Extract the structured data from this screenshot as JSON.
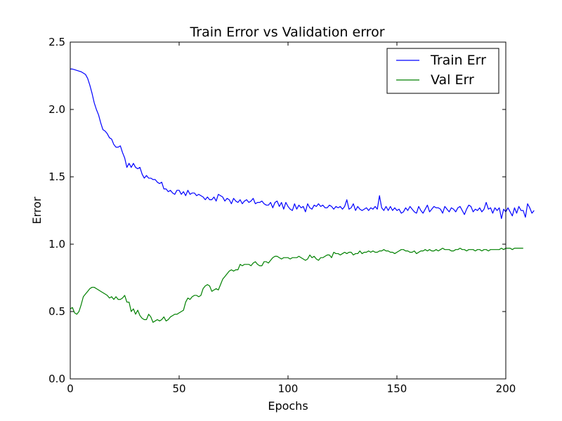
{
  "chart_data": {
    "type": "line",
    "title": "Train Error vs Validation error",
    "xlabel": "Epochs",
    "ylabel": "Error",
    "xlim": [
      0,
      200
    ],
    "ylim": [
      0,
      2.5
    ],
    "x_ticks": [
      0,
      50,
      100,
      150,
      200
    ],
    "x_tick_labels": [
      "0",
      "50",
      "100",
      "150",
      "200"
    ],
    "y_ticks": [
      0.0,
      0.5,
      1.0,
      1.5,
      2.0,
      2.5
    ],
    "y_tick_labels": [
      "0.0",
      "0.5",
      "1.0",
      "1.5",
      "2.0",
      "2.5"
    ],
    "grid": false,
    "legend_position": "top-right",
    "series": [
      {
        "name": "Train Err",
        "color": "#0000ff",
        "values": [
          2.3,
          2.3,
          2.295,
          2.29,
          2.285,
          2.28,
          2.27,
          2.26,
          2.23,
          2.18,
          2.12,
          2.05,
          2.0,
          1.96,
          1.9,
          1.85,
          1.84,
          1.82,
          1.79,
          1.78,
          1.74,
          1.72,
          1.72,
          1.73,
          1.68,
          1.64,
          1.57,
          1.6,
          1.57,
          1.6,
          1.57,
          1.56,
          1.57,
          1.52,
          1.49,
          1.51,
          1.49,
          1.49,
          1.48,
          1.48,
          1.46,
          1.45,
          1.46,
          1.41,
          1.41,
          1.39,
          1.4,
          1.38,
          1.37,
          1.4,
          1.4,
          1.37,
          1.39,
          1.36,
          1.4,
          1.37,
          1.38,
          1.38,
          1.36,
          1.37,
          1.36,
          1.35,
          1.33,
          1.35,
          1.33,
          1.33,
          1.35,
          1.32,
          1.37,
          1.36,
          1.35,
          1.32,
          1.34,
          1.33,
          1.3,
          1.34,
          1.32,
          1.31,
          1.33,
          1.3,
          1.32,
          1.33,
          1.31,
          1.32,
          1.34,
          1.3,
          1.31,
          1.31,
          1.32,
          1.3,
          1.29,
          1.29,
          1.31,
          1.27,
          1.31,
          1.32,
          1.28,
          1.31,
          1.26,
          1.31,
          1.28,
          1.26,
          1.25,
          1.3,
          1.26,
          1.29,
          1.27,
          1.28,
          1.24,
          1.3,
          1.27,
          1.26,
          1.29,
          1.28,
          1.3,
          1.28,
          1.29,
          1.27,
          1.27,
          1.29,
          1.28,
          1.26,
          1.28,
          1.27,
          1.28,
          1.26,
          1.28,
          1.33,
          1.26,
          1.27,
          1.3,
          1.25,
          1.28,
          1.26,
          1.25,
          1.26,
          1.27,
          1.25,
          1.27,
          1.26,
          1.28,
          1.26,
          1.36,
          1.27,
          1.25,
          1.28,
          1.25,
          1.28,
          1.25,
          1.27,
          1.25,
          1.26,
          1.23,
          1.24,
          1.27,
          1.25,
          1.28,
          1.26,
          1.24,
          1.23,
          1.28,
          1.25,
          1.23,
          1.26,
          1.29,
          1.24,
          1.26,
          1.28,
          1.27,
          1.27,
          1.26,
          1.23,
          1.28,
          1.26,
          1.24,
          1.27,
          1.26,
          1.24,
          1.27,
          1.28,
          1.25,
          1.22,
          1.26,
          1.29,
          1.28,
          1.24,
          1.26,
          1.25,
          1.27,
          1.24,
          1.26,
          1.31,
          1.26,
          1.27,
          1.23,
          1.27,
          1.25,
          1.27,
          1.19,
          1.26,
          1.24,
          1.27,
          1.24,
          1.21,
          1.27,
          1.23,
          1.28,
          1.25,
          1.25,
          1.2,
          1.3,
          1.27,
          1.23,
          1.25
        ]
      },
      {
        "name": "Val Err",
        "color": "#008000",
        "values": [
          0.52,
          0.53,
          0.49,
          0.48,
          0.5,
          0.55,
          0.61,
          0.63,
          0.65,
          0.67,
          0.68,
          0.68,
          0.67,
          0.66,
          0.65,
          0.64,
          0.63,
          0.62,
          0.6,
          0.61,
          0.59,
          0.61,
          0.59,
          0.59,
          0.6,
          0.62,
          0.57,
          0.57,
          0.5,
          0.52,
          0.48,
          0.51,
          0.47,
          0.45,
          0.44,
          0.44,
          0.48,
          0.46,
          0.42,
          0.43,
          0.44,
          0.43,
          0.44,
          0.46,
          0.43,
          0.44,
          0.46,
          0.47,
          0.48,
          0.48,
          0.49,
          0.5,
          0.51,
          0.57,
          0.6,
          0.59,
          0.61,
          0.62,
          0.62,
          0.61,
          0.62,
          0.67,
          0.69,
          0.7,
          0.69,
          0.65,
          0.66,
          0.67,
          0.66,
          0.7,
          0.74,
          0.76,
          0.78,
          0.8,
          0.81,
          0.8,
          0.81,
          0.81,
          0.85,
          0.84,
          0.85,
          0.85,
          0.85,
          0.84,
          0.86,
          0.87,
          0.85,
          0.84,
          0.84,
          0.87,
          0.87,
          0.86,
          0.88,
          0.9,
          0.91,
          0.91,
          0.9,
          0.89,
          0.9,
          0.9,
          0.9,
          0.89,
          0.9,
          0.9,
          0.9,
          0.91,
          0.9,
          0.89,
          0.88,
          0.89,
          0.92,
          0.9,
          0.91,
          0.89,
          0.88,
          0.9,
          0.9,
          0.91,
          0.92,
          0.92,
          0.9,
          0.94,
          0.93,
          0.93,
          0.92,
          0.93,
          0.94,
          0.93,
          0.94,
          0.94,
          0.92,
          0.93,
          0.93,
          0.95,
          0.93,
          0.94,
          0.94,
          0.95,
          0.94,
          0.95,
          0.94,
          0.94,
          0.95,
          0.95,
          0.96,
          0.95,
          0.95,
          0.94,
          0.94,
          0.93,
          0.94,
          0.95,
          0.96,
          0.96,
          0.95,
          0.95,
          0.94,
          0.94,
          0.95,
          0.93,
          0.94,
          0.95,
          0.95,
          0.96,
          0.95,
          0.96,
          0.95,
          0.95,
          0.96,
          0.95,
          0.96,
          0.97,
          0.96,
          0.96,
          0.96,
          0.95,
          0.95,
          0.96,
          0.96,
          0.97,
          0.96,
          0.96,
          0.95,
          0.96,
          0.96,
          0.96,
          0.95,
          0.96,
          0.96,
          0.95,
          0.96,
          0.96,
          0.95,
          0.96,
          0.96,
          0.96,
          0.96,
          0.96,
          0.97,
          0.96,
          0.97,
          0.97,
          0.97,
          0.96,
          0.97,
          0.97,
          0.97,
          0.97,
          0.97
        ]
      }
    ]
  }
}
